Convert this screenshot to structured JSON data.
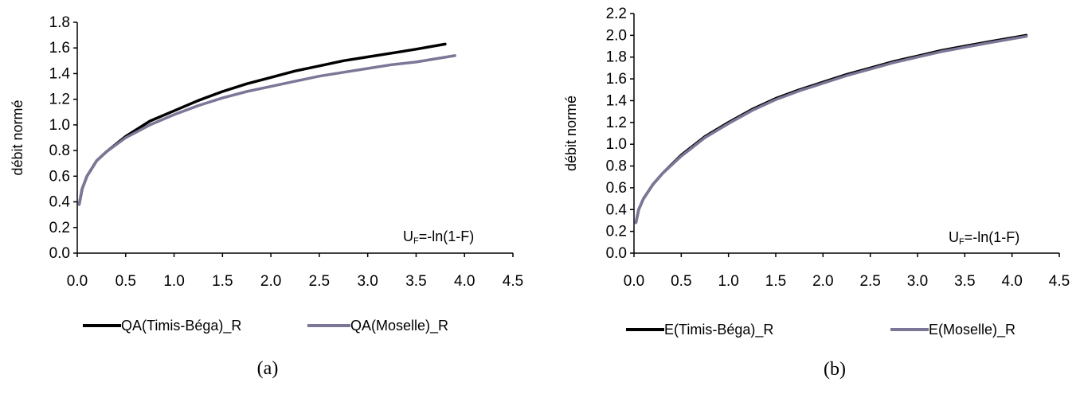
{
  "chart_data": [
    {
      "type": "line",
      "panel": "(a)",
      "ylabel": "débit normé",
      "xlim": [
        0,
        4.5
      ],
      "ylim": [
        0,
        1.8
      ],
      "xticks": [
        "0.0",
        "0.5",
        "1.0",
        "1.5",
        "2.0",
        "2.5",
        "3.0",
        "3.5",
        "4.0",
        "4.5"
      ],
      "yticks": [
        "0.0",
        "0.2",
        "0.4",
        "0.6",
        "0.8",
        "1.0",
        "1.2",
        "1.4",
        "1.6",
        "1.8"
      ],
      "annotation_main": "U",
      "annotation_sub": "F",
      "annotation_rest": "=-ln(1-F)",
      "legend_position": "bottom",
      "series": [
        {
          "name": "QA(Timis-Béga)_R",
          "color": "#000000",
          "x": [
            0.02,
            0.05,
            0.1,
            0.2,
            0.3,
            0.5,
            0.75,
            1.0,
            1.25,
            1.5,
            1.75,
            2.0,
            2.25,
            2.5,
            2.75,
            3.0,
            3.25,
            3.5,
            3.8
          ],
          "y": [
            0.38,
            0.5,
            0.6,
            0.72,
            0.79,
            0.91,
            1.03,
            1.11,
            1.19,
            1.26,
            1.32,
            1.37,
            1.42,
            1.46,
            1.5,
            1.53,
            1.56,
            1.59,
            1.63
          ]
        },
        {
          "name": "QA(Moselle)_R",
          "color": "#7a7797",
          "x": [
            0.02,
            0.05,
            0.1,
            0.2,
            0.3,
            0.5,
            0.75,
            1.0,
            1.25,
            1.5,
            1.75,
            2.0,
            2.25,
            2.5,
            2.75,
            3.0,
            3.25,
            3.5,
            3.9
          ],
          "y": [
            0.38,
            0.5,
            0.6,
            0.72,
            0.79,
            0.9,
            1.0,
            1.08,
            1.15,
            1.21,
            1.26,
            1.3,
            1.34,
            1.38,
            1.41,
            1.44,
            1.47,
            1.49,
            1.54
          ]
        }
      ]
    },
    {
      "type": "line",
      "panel": "(b)",
      "ylabel": "débit normé",
      "xlim": [
        0,
        4.5
      ],
      "ylim": [
        0,
        2.2
      ],
      "xticks": [
        "0.0",
        "0.5",
        "1.0",
        "1.5",
        "2.0",
        "2.5",
        "3.0",
        "3.5",
        "4.0",
        "4.5"
      ],
      "yticks": [
        "0.0",
        "0.2",
        "0.4",
        "0.6",
        "0.8",
        "1.0",
        "1.2",
        "1.4",
        "1.6",
        "1.8",
        "2.0",
        "2.2"
      ],
      "annotation_main": "U",
      "annotation_sub": "F",
      "annotation_rest": "=-ln(1-F)",
      "legend_position": "bottom",
      "series": [
        {
          "name": "E(Timis-Béga)_R",
          "color": "#000000",
          "x": [
            0.02,
            0.05,
            0.1,
            0.2,
            0.3,
            0.5,
            0.75,
            1.0,
            1.25,
            1.5,
            1.75,
            2.0,
            2.25,
            2.5,
            2.75,
            3.0,
            3.25,
            3.5,
            3.75,
            4.15
          ],
          "y": [
            0.28,
            0.4,
            0.5,
            0.63,
            0.73,
            0.9,
            1.07,
            1.2,
            1.32,
            1.42,
            1.5,
            1.57,
            1.64,
            1.7,
            1.76,
            1.81,
            1.86,
            1.9,
            1.94,
            2.0
          ]
        },
        {
          "name": "E(Moselle)_R",
          "color": "#7a7797",
          "x": [
            0.02,
            0.05,
            0.1,
            0.2,
            0.3,
            0.5,
            0.75,
            1.0,
            1.25,
            1.5,
            1.75,
            2.0,
            2.25,
            2.5,
            2.75,
            3.0,
            3.25,
            3.5,
            3.75,
            4.15
          ],
          "y": [
            0.28,
            0.4,
            0.5,
            0.63,
            0.73,
            0.89,
            1.06,
            1.19,
            1.31,
            1.41,
            1.49,
            1.56,
            1.63,
            1.69,
            1.75,
            1.8,
            1.85,
            1.89,
            1.93,
            1.99
          ]
        }
      ]
    }
  ]
}
